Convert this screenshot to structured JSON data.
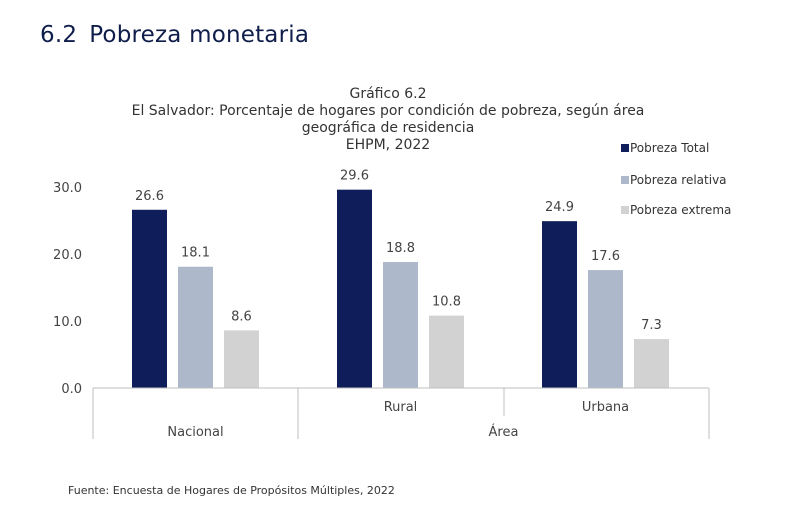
{
  "section": {
    "number": "6.2",
    "title": "Pobreza monetaria"
  },
  "chart_data": {
    "type": "bar",
    "title": "Gráfico 6.2",
    "subtitle_lines": [
      "El Salvador: Porcentaje de hogares por condición de pobreza, según área",
      "geográfica de residencia",
      "EHPM, 2022"
    ],
    "categories": [
      "Nacional",
      "Rural",
      "Urbana"
    ],
    "category_groups": [
      "",
      "Área",
      "Área"
    ],
    "series": [
      {
        "name": "Pobreza Total",
        "color": "#0f1d5a",
        "values": [
          26.6,
          29.6,
          24.9
        ]
      },
      {
        "name": "Pobreza relativa",
        "color": "#aeb8cb",
        "values": [
          18.1,
          18.8,
          17.6
        ]
      },
      {
        "name": "Pobreza extrema",
        "color": "#d2d2d2",
        "values": [
          8.6,
          10.8,
          7.3
        ]
      }
    ],
    "ylim": [
      0,
      30
    ],
    "yticks": [
      0,
      10,
      20,
      30
    ],
    "ytick_labels": [
      "0.0",
      "10.0",
      "20.0",
      "30.0"
    ],
    "value_labels": [
      [
        "26.6",
        "29.6",
        "24.9"
      ],
      [
        "18.1",
        "18.8",
        "17.6"
      ],
      [
        "8.6",
        "10.8",
        "7.3"
      ]
    ],
    "grid": false,
    "legend": "right"
  },
  "source": "Fuente: Encuesta de Hogares de Propósitos Múltiples, 2022"
}
